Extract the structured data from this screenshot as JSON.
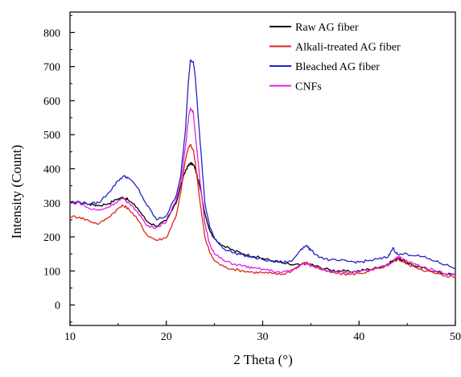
{
  "chart_data": {
    "type": "line",
    "title": "",
    "xlabel": "2 Theta (°)",
    "ylabel": "Intensity (Count)",
    "xlim": [
      10,
      50
    ],
    "ylim": [
      -60,
      860
    ],
    "xticks": [
      10,
      20,
      30,
      40,
      50
    ],
    "yticks": [
      0,
      100,
      200,
      300,
      400,
      500,
      600,
      700,
      800
    ],
    "grid": false,
    "legend_position": "top-right",
    "series": [
      {
        "name": "Raw AG fiber",
        "color": "#000000",
        "points": [
          [
            10,
            300
          ],
          [
            11,
            302
          ],
          [
            12,
            296
          ],
          [
            13,
            292
          ],
          [
            14,
            298
          ],
          [
            15,
            312
          ],
          [
            15.5,
            316
          ],
          [
            16,
            310
          ],
          [
            17,
            285
          ],
          [
            18,
            245
          ],
          [
            19,
            232
          ],
          [
            20,
            248
          ],
          [
            21,
            298
          ],
          [
            21.5,
            350
          ],
          [
            22,
            395
          ],
          [
            22.3,
            410
          ],
          [
            22.5,
            416
          ],
          [
            22.8,
            412
          ],
          [
            23,
            400
          ],
          [
            23.5,
            345
          ],
          [
            24,
            270
          ],
          [
            24.5,
            220
          ],
          [
            25,
            195
          ],
          [
            26,
            172
          ],
          [
            27,
            160
          ],
          [
            28,
            150
          ],
          [
            29,
            143
          ],
          [
            30,
            137
          ],
          [
            31,
            130
          ],
          [
            32,
            123
          ],
          [
            33,
            118
          ],
          [
            34,
            118
          ],
          [
            34.5,
            122
          ],
          [
            35,
            119
          ],
          [
            36,
            110
          ],
          [
            37,
            103
          ],
          [
            38,
            100
          ],
          [
            39,
            98
          ],
          [
            40,
            100
          ],
          [
            41,
            105
          ],
          [
            42,
            110
          ],
          [
            43,
            120
          ],
          [
            43.5,
            130
          ],
          [
            44,
            138
          ],
          [
            44.5,
            130
          ],
          [
            45,
            125
          ],
          [
            46,
            112
          ],
          [
            47,
            106
          ],
          [
            48,
            98
          ],
          [
            49,
            92
          ],
          [
            50,
            88
          ]
        ]
      },
      {
        "name": "Alkali-treated AG fiber",
        "color": "#e0241c",
        "points": [
          [
            10,
            260
          ],
          [
            11,
            258
          ],
          [
            12,
            247
          ],
          [
            13,
            238
          ],
          [
            14,
            258
          ],
          [
            15,
            283
          ],
          [
            15.5,
            292
          ],
          [
            16,
            285
          ],
          [
            17,
            252
          ],
          [
            18,
            205
          ],
          [
            19,
            190
          ],
          [
            20,
            198
          ],
          [
            21,
            260
          ],
          [
            21.5,
            330
          ],
          [
            22,
            430
          ],
          [
            22.3,
            462
          ],
          [
            22.5,
            470
          ],
          [
            22.8,
            455
          ],
          [
            23,
            420
          ],
          [
            23.5,
            300
          ],
          [
            24,
            200
          ],
          [
            24.5,
            155
          ],
          [
            25,
            130
          ],
          [
            26,
            112
          ],
          [
            27,
            105
          ],
          [
            28,
            100
          ],
          [
            29,
            96
          ],
          [
            30,
            95
          ],
          [
            31,
            92
          ],
          [
            32,
            90
          ],
          [
            33,
            100
          ],
          [
            34,
            120
          ],
          [
            34.5,
            125
          ],
          [
            35,
            118
          ],
          [
            36,
            105
          ],
          [
            37,
            96
          ],
          [
            38,
            92
          ],
          [
            39,
            90
          ],
          [
            40,
            93
          ],
          [
            41,
            98
          ],
          [
            42,
            108
          ],
          [
            43,
            115
          ],
          [
            43.5,
            125
          ],
          [
            44,
            135
          ],
          [
            44.5,
            128
          ],
          [
            45,
            120
          ],
          [
            46,
            110
          ],
          [
            47,
            100
          ],
          [
            48,
            92
          ],
          [
            49,
            86
          ],
          [
            50,
            82
          ]
        ]
      },
      {
        "name": "Bleached AG fiber",
        "color": "#2323c8",
        "points": [
          [
            10,
            300
          ],
          [
            11,
            302
          ],
          [
            12,
            297
          ],
          [
            13,
            300
          ],
          [
            14,
            330
          ],
          [
            15,
            365
          ],
          [
            15.5,
            378
          ],
          [
            16,
            375
          ],
          [
            17,
            345
          ],
          [
            18,
            292
          ],
          [
            19,
            250
          ],
          [
            20,
            262
          ],
          [
            21,
            320
          ],
          [
            21.5,
            380
          ],
          [
            22,
            520
          ],
          [
            22.3,
            660
          ],
          [
            22.5,
            720
          ],
          [
            22.8,
            715
          ],
          [
            23,
            670
          ],
          [
            23.5,
            480
          ],
          [
            24,
            300
          ],
          [
            24.5,
            230
          ],
          [
            25,
            195
          ],
          [
            26,
            165
          ],
          [
            27,
            153
          ],
          [
            28,
            147
          ],
          [
            29,
            140
          ],
          [
            30,
            133
          ],
          [
            31,
            129
          ],
          [
            32,
            126
          ],
          [
            33,
            128
          ],
          [
            34,
            165
          ],
          [
            34.5,
            175
          ],
          [
            35,
            160
          ],
          [
            36,
            140
          ],
          [
            37,
            132
          ],
          [
            38,
            130
          ],
          [
            39,
            128
          ],
          [
            40,
            126
          ],
          [
            41,
            130
          ],
          [
            42,
            135
          ],
          [
            43,
            140
          ],
          [
            43.5,
            168
          ],
          [
            44,
            148
          ],
          [
            45,
            150
          ],
          [
            46,
            145
          ],
          [
            47,
            138
          ],
          [
            48,
            128
          ],
          [
            49,
            118
          ],
          [
            50,
            108
          ]
        ]
      },
      {
        "name": "CNFs",
        "color": "#e020e0",
        "points": [
          [
            10,
            298
          ],
          [
            11,
            300
          ],
          [
            12,
            283
          ],
          [
            13,
            278
          ],
          [
            14,
            288
          ],
          [
            15,
            306
          ],
          [
            15.5,
            312
          ],
          [
            16,
            302
          ],
          [
            17,
            275
          ],
          [
            18,
            232
          ],
          [
            19,
            228
          ],
          [
            20,
            245
          ],
          [
            21,
            305
          ],
          [
            21.5,
            360
          ],
          [
            22,
            470
          ],
          [
            22.3,
            550
          ],
          [
            22.5,
            578
          ],
          [
            22.8,
            565
          ],
          [
            23,
            505
          ],
          [
            23.5,
            360
          ],
          [
            24,
            240
          ],
          [
            24.5,
            180
          ],
          [
            25,
            150
          ],
          [
            26,
            130
          ],
          [
            27,
            120
          ],
          [
            28,
            115
          ],
          [
            29,
            108
          ],
          [
            30,
            105
          ],
          [
            31,
            100
          ],
          [
            32,
            95
          ],
          [
            33,
            103
          ],
          [
            34,
            118
          ],
          [
            34.5,
            122
          ],
          [
            35,
            115
          ],
          [
            36,
            108
          ],
          [
            37,
            100
          ],
          [
            38,
            97
          ],
          [
            39,
            95
          ],
          [
            40,
            97
          ],
          [
            41,
            102
          ],
          [
            42,
            108
          ],
          [
            43,
            118
          ],
          [
            43.5,
            128
          ],
          [
            44,
            142
          ],
          [
            44.5,
            136
          ],
          [
            45,
            128
          ],
          [
            46,
            118
          ],
          [
            47,
            108
          ],
          [
            48,
            100
          ],
          [
            49,
            92
          ],
          [
            50,
            88
          ]
        ]
      }
    ]
  }
}
